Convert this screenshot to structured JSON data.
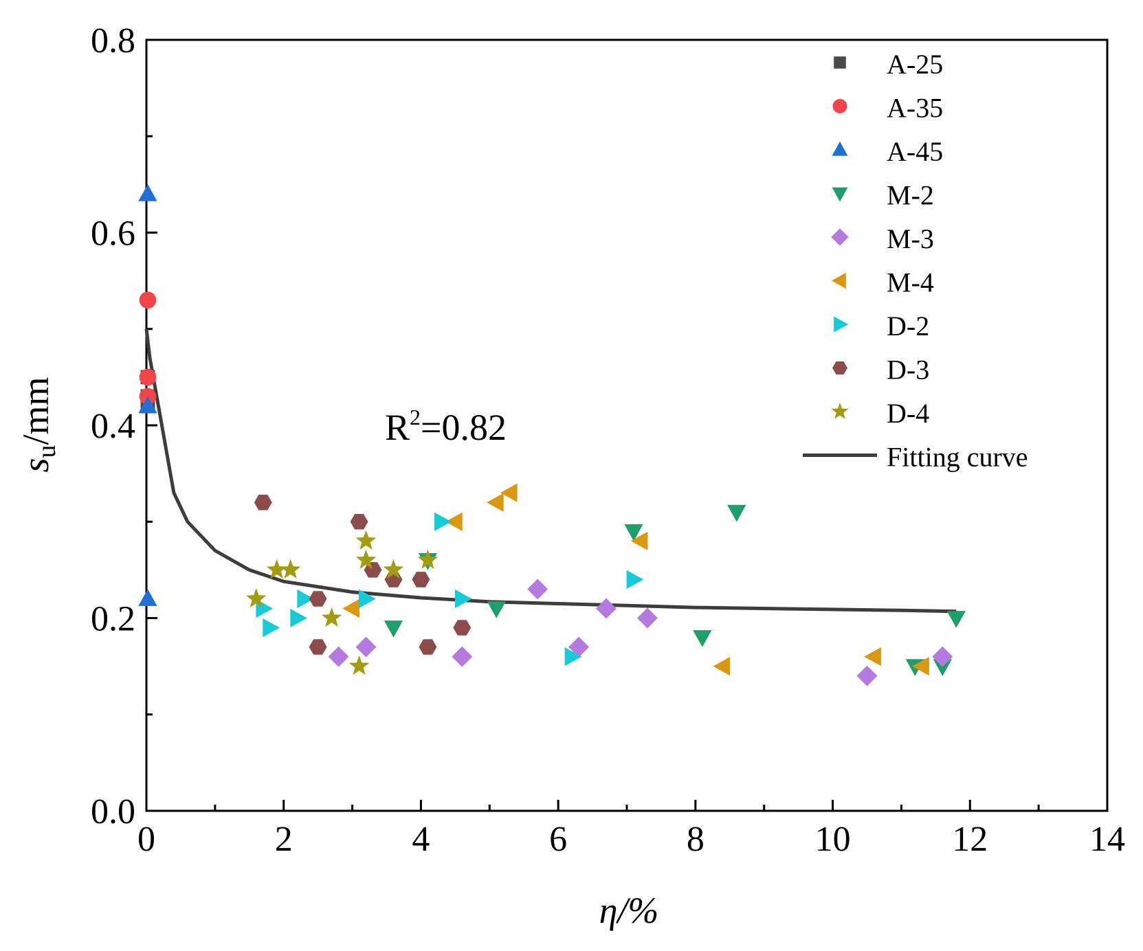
{
  "chart_data": {
    "type": "scatter",
    "title": "",
    "xlabel": "η/%",
    "ylabel_main": "s",
    "ylabel_sub": "u",
    "ylabel_unit": "/mm",
    "xlim": [
      0,
      14
    ],
    "ylim": [
      0,
      0.8
    ],
    "xticks": [
      "0",
      "2",
      "4",
      "6",
      "8",
      "10",
      "12",
      "14"
    ],
    "yticks": [
      "0.0",
      "0.2",
      "0.4",
      "0.6",
      "0.8"
    ],
    "xtick_values": [
      0,
      2,
      4,
      6,
      8,
      10,
      12,
      14
    ],
    "ytick_values": [
      0,
      0.2,
      0.4,
      0.6,
      0.8
    ],
    "annotation": {
      "text_main": "R",
      "text_sup": "2",
      "text_rest": "=0.82"
    },
    "legend_position": "top-right",
    "series": [
      {
        "name": "A-25",
        "marker": "square",
        "color": "#4a4a4a",
        "points": [
          [
            0.02,
            0.45
          ],
          [
            0.02,
            0.43
          ],
          [
            0.02,
            0.42
          ]
        ]
      },
      {
        "name": "A-35",
        "marker": "circle",
        "color": "#f0454a",
        "points": [
          [
            0.02,
            0.53
          ],
          [
            0.02,
            0.45
          ],
          [
            0.02,
            0.43
          ]
        ]
      },
      {
        "name": "A-45",
        "marker": "triangle-up",
        "color": "#1f6fd6",
        "points": [
          [
            0.02,
            0.64
          ],
          [
            0.02,
            0.42
          ],
          [
            0.02,
            0.22
          ]
        ]
      },
      {
        "name": "M-2",
        "marker": "triangle-down",
        "color": "#1e9e6a",
        "points": [
          [
            3.6,
            0.19
          ],
          [
            4.1,
            0.26
          ],
          [
            5.1,
            0.21
          ],
          [
            7.1,
            0.29
          ],
          [
            8.1,
            0.18
          ],
          [
            8.6,
            0.31
          ],
          [
            11.2,
            0.15
          ],
          [
            11.6,
            0.15
          ],
          [
            11.8,
            0.2
          ]
        ]
      },
      {
        "name": "M-3",
        "marker": "diamond",
        "color": "#b57ae0",
        "points": [
          [
            2.8,
            0.16
          ],
          [
            3.2,
            0.17
          ],
          [
            4.6,
            0.16
          ],
          [
            5.7,
            0.23
          ],
          [
            6.3,
            0.17
          ],
          [
            6.7,
            0.21
          ],
          [
            7.3,
            0.2
          ],
          [
            10.5,
            0.14
          ],
          [
            11.6,
            0.16
          ]
        ]
      },
      {
        "name": "M-4",
        "marker": "triangle-left",
        "color": "#d9980f",
        "points": [
          [
            3.0,
            0.21
          ],
          [
            4.5,
            0.3
          ],
          [
            5.1,
            0.32
          ],
          [
            5.3,
            0.33
          ],
          [
            7.2,
            0.28
          ],
          [
            8.4,
            0.15
          ],
          [
            10.6,
            0.16
          ],
          [
            11.3,
            0.15
          ]
        ]
      },
      {
        "name": "D-2",
        "marker": "triangle-right",
        "color": "#15cbd8",
        "points": [
          [
            1.7,
            0.21
          ],
          [
            1.8,
            0.19
          ],
          [
            2.2,
            0.2
          ],
          [
            2.3,
            0.22
          ],
          [
            3.2,
            0.22
          ],
          [
            4.3,
            0.3
          ],
          [
            4.6,
            0.22
          ],
          [
            6.2,
            0.16
          ],
          [
            7.1,
            0.24
          ]
        ]
      },
      {
        "name": "D-3",
        "marker": "hexagon",
        "color": "#8b4c4c",
        "points": [
          [
            1.7,
            0.32
          ],
          [
            2.5,
            0.22
          ],
          [
            2.5,
            0.17
          ],
          [
            3.1,
            0.3
          ],
          [
            3.3,
            0.25
          ],
          [
            3.6,
            0.24
          ],
          [
            4.0,
            0.24
          ],
          [
            4.1,
            0.17
          ],
          [
            4.6,
            0.19
          ]
        ]
      },
      {
        "name": "D-4",
        "marker": "star",
        "color": "#a39c10",
        "points": [
          [
            1.6,
            0.22
          ],
          [
            1.9,
            0.25
          ],
          [
            2.1,
            0.25
          ],
          [
            2.7,
            0.2
          ],
          [
            3.1,
            0.15
          ],
          [
            3.2,
            0.28
          ],
          [
            3.2,
            0.26
          ],
          [
            3.6,
            0.25
          ],
          [
            4.1,
            0.26
          ]
        ]
      }
    ],
    "fit": {
      "name": "Fitting curve",
      "color": "#3d3d3d",
      "points": [
        [
          0.0,
          0.5
        ],
        [
          0.05,
          0.47
        ],
        [
          0.2,
          0.41
        ],
        [
          0.4,
          0.33
        ],
        [
          0.6,
          0.3
        ],
        [
          0.8,
          0.285
        ],
        [
          1.0,
          0.27
        ],
        [
          1.5,
          0.25
        ],
        [
          2.0,
          0.238
        ],
        [
          3.0,
          0.227
        ],
        [
          4.0,
          0.221
        ],
        [
          5.0,
          0.217
        ],
        [
          6.0,
          0.215
        ],
        [
          7.0,
          0.213
        ],
        [
          8.0,
          0.211
        ],
        [
          9.0,
          0.21
        ],
        [
          10.0,
          0.209
        ],
        [
          11.0,
          0.208
        ],
        [
          11.8,
          0.207
        ]
      ]
    }
  }
}
